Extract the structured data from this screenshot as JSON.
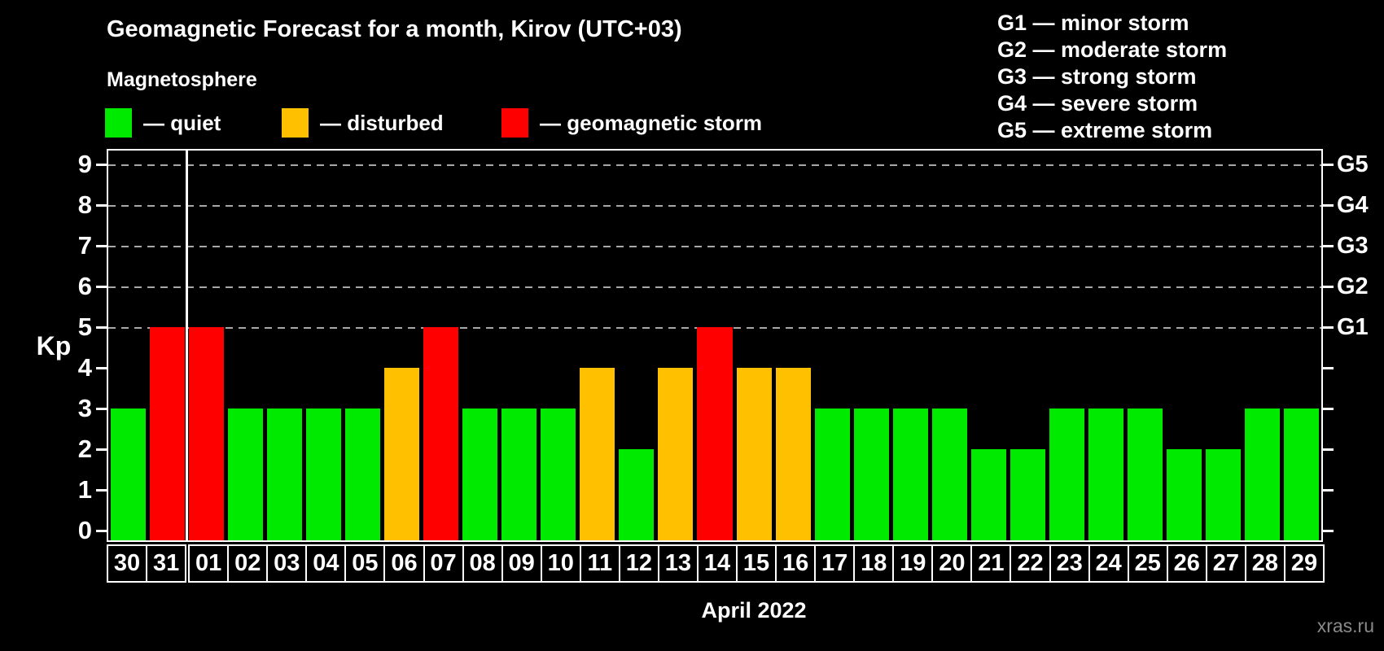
{
  "title": "Geomagnetic Forecast for a month, Kirov (UTC+03)",
  "subtitle": "Magnetosphere",
  "legend": {
    "items": [
      {
        "key": "quiet",
        "label": "— quiet"
      },
      {
        "key": "disturbed",
        "label": "— disturbed"
      },
      {
        "key": "storm",
        "label": "— geomagnetic storm"
      }
    ]
  },
  "g_scale_legend": [
    "G1 — minor storm",
    "G2 — moderate storm",
    "G3 — strong storm",
    "G4 — severe storm",
    "G5 — extreme storm"
  ],
  "colors": {
    "background": "#000000",
    "text": "#ffffff",
    "frame": "#ffffff",
    "grid": "#a8a8a8",
    "quiet": "#00ea00",
    "disturbed": "#ffc000",
    "storm": "#ff0000",
    "watermark": "#8a8a8a"
  },
  "chart_data": {
    "type": "bar",
    "title": "Geomagnetic Forecast for a month, Kirov (UTC+03)",
    "xlabel": "April 2022",
    "ylabel": "Kp",
    "ylim": [
      0,
      9.4
    ],
    "yticks": [
      0,
      1,
      2,
      3,
      4,
      5,
      6,
      7,
      8,
      9
    ],
    "gridlines_kp": [
      5,
      6,
      7,
      8,
      9
    ],
    "grid": "dashed, horizontal, at Kp 5-9 only",
    "legend_position": "top-left (bar colors), top-right (G scale)",
    "right_axis_labels": [
      {
        "kp": 5,
        "label": "G1"
      },
      {
        "kp": 6,
        "label": "G2"
      },
      {
        "kp": 7,
        "label": "G3"
      },
      {
        "kp": 8,
        "label": "G4"
      },
      {
        "kp": 9,
        "label": "G5"
      }
    ],
    "categories": [
      "30",
      "31",
      "01",
      "02",
      "03",
      "04",
      "05",
      "06",
      "07",
      "08",
      "09",
      "10",
      "11",
      "12",
      "13",
      "14",
      "15",
      "16",
      "17",
      "18",
      "19",
      "20",
      "21",
      "22",
      "23",
      "24",
      "25",
      "26",
      "27",
      "28",
      "29"
    ],
    "values": [
      3,
      5,
      5,
      3,
      3,
      3,
      3,
      4,
      5,
      3,
      3,
      3,
      4,
      2,
      4,
      5,
      4,
      4,
      3,
      3,
      3,
      3,
      2,
      2,
      3,
      3,
      3,
      2,
      2,
      3,
      3
    ],
    "statuses": [
      "quiet",
      "storm",
      "storm",
      "quiet",
      "quiet",
      "quiet",
      "quiet",
      "disturbed",
      "storm",
      "quiet",
      "quiet",
      "quiet",
      "disturbed",
      "quiet",
      "disturbed",
      "storm",
      "disturbed",
      "disturbed",
      "quiet",
      "quiet",
      "quiet",
      "quiet",
      "quiet",
      "quiet",
      "quiet",
      "quiet",
      "quiet",
      "quiet",
      "quiet",
      "quiet",
      "quiet"
    ],
    "month_separator_after_index": 1
  },
  "watermark": "xras.ru"
}
